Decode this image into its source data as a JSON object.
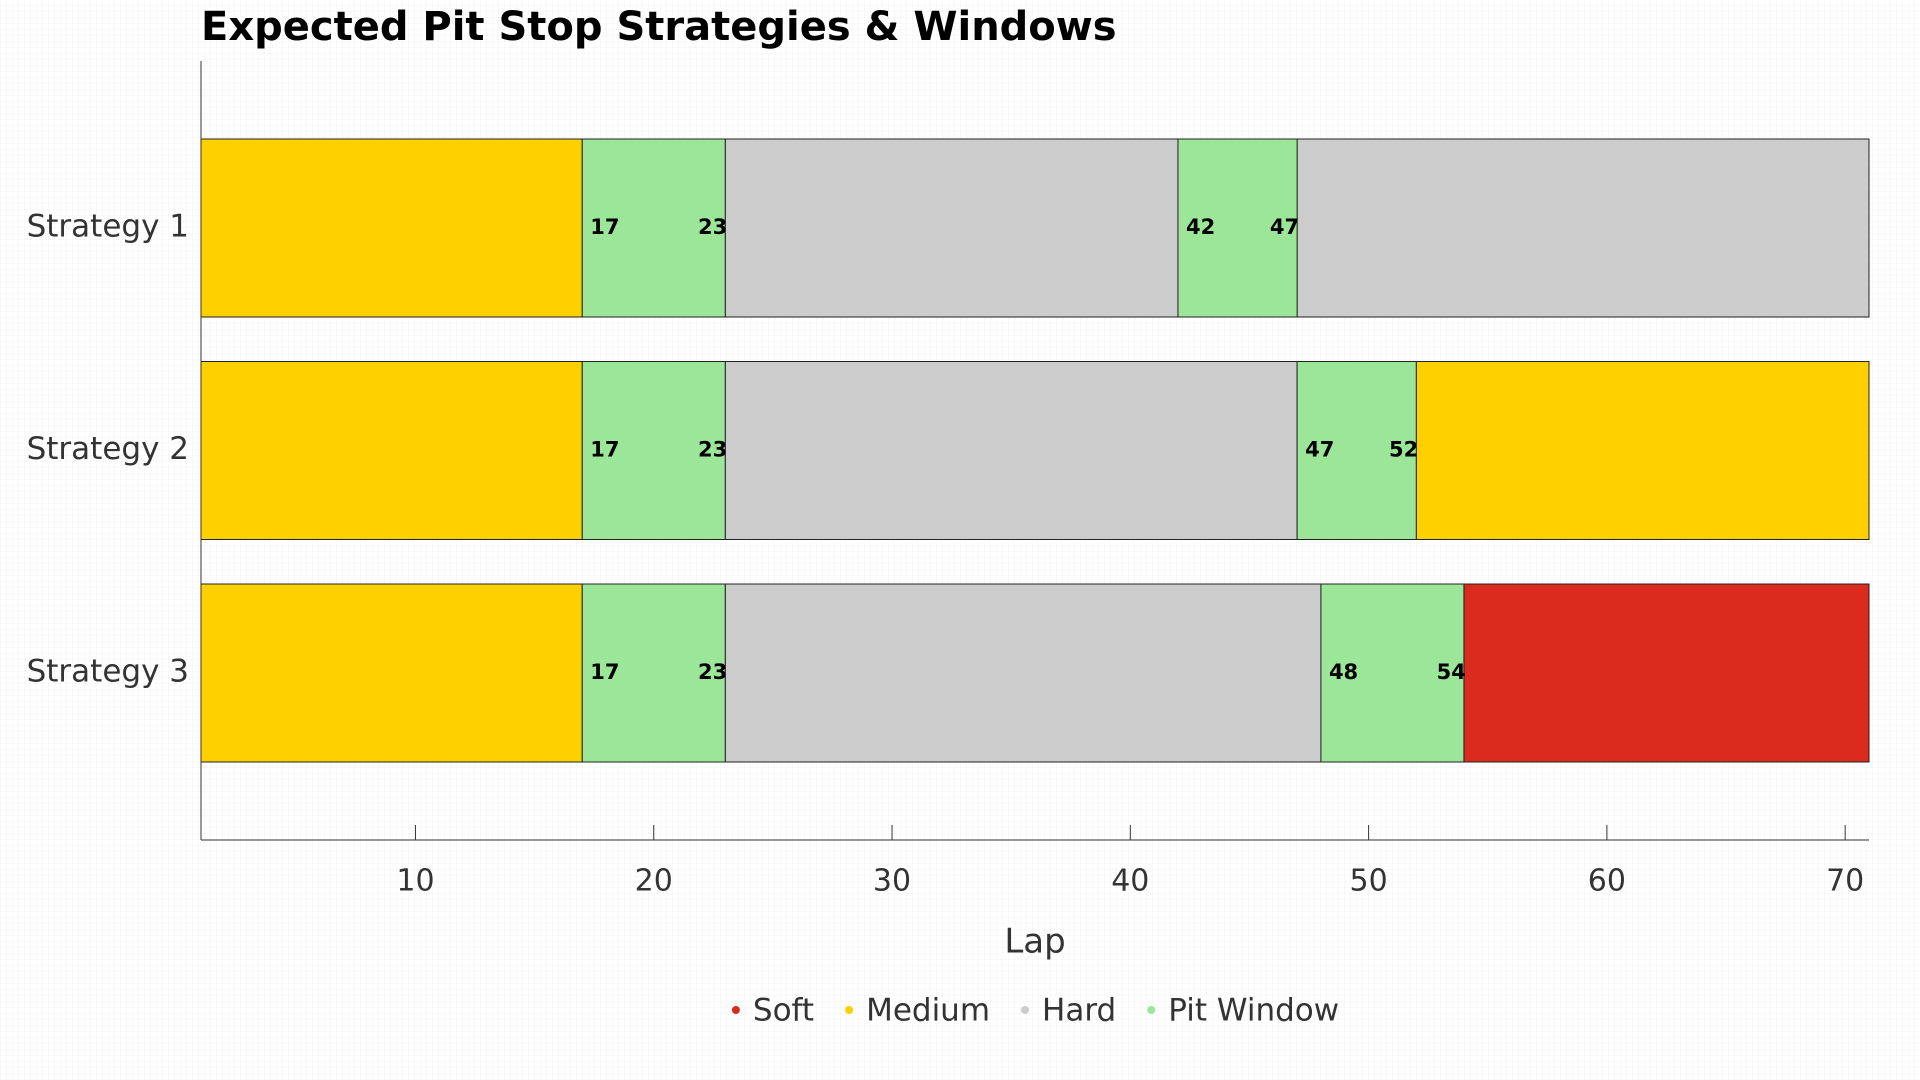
{
  "chart_data": {
    "type": "gantt",
    "title": "Expected Pit Stop Strategies & Windows",
    "x_label": "Lap",
    "categories": [
      "Strategy 1",
      "Strategy 2",
      "Strategy 3"
    ],
    "xlim": [
      1,
      71
    ],
    "xticks": [
      10,
      20,
      30,
      40,
      50,
      60,
      70
    ],
    "series": [
      {
        "name": "Soft",
        "color": "#db2b1f",
        "values": [
          [],
          [],
          [
            [
              54,
              71
            ]
          ]
        ]
      },
      {
        "name": "Medium",
        "color": "#ffd000",
        "values": [
          [
            [
              1,
              17
            ]
          ],
          [
            [
              1,
              17
            ],
            [
              52,
              71
            ]
          ],
          [
            [
              1,
              17
            ]
          ]
        ]
      },
      {
        "name": "Hard",
        "color": "#cccccc",
        "values": [
          [
            [
              23,
              42
            ],
            [
              47,
              71
            ]
          ],
          [
            [
              23,
              47
            ]
          ],
          [
            [
              23,
              48
            ]
          ]
        ]
      },
      {
        "name": "Pit Window",
        "color": "#9ce69a",
        "show_labels": true,
        "values": [
          [
            [
              17,
              23
            ],
            [
              42,
              47
            ]
          ],
          [
            [
              17,
              23
            ],
            [
              47,
              52
            ]
          ],
          [
            [
              17,
              23
            ],
            [
              48,
              54
            ]
          ]
        ]
      }
    ]
  }
}
